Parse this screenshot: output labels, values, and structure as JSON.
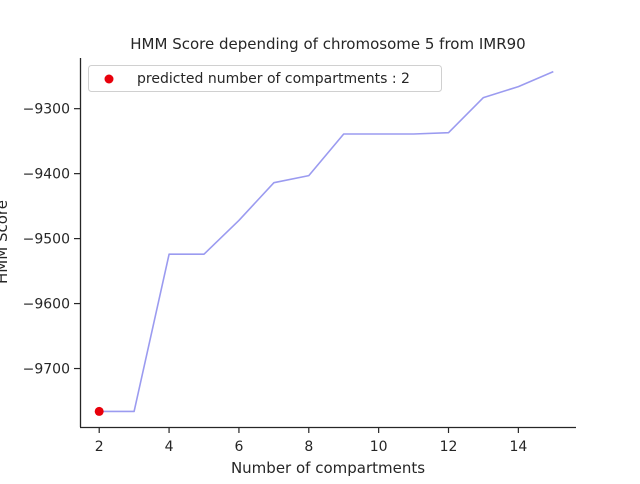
{
  "chart_data": {
    "type": "line",
    "title": "HMM Score depending of chromosome 5 from IMR90",
    "xlabel": "Number of compartments",
    "ylabel": "HMM Score",
    "x": [
      2,
      3,
      4,
      5,
      6,
      7,
      8,
      9,
      10,
      11,
      12,
      13,
      14,
      15
    ],
    "series": [
      {
        "values": [
          -9766,
          -9766,
          -9524,
          -9524,
          -9472,
          -9414,
          -9403,
          -9339,
          -9339,
          -9339,
          -9337,
          -9283,
          -9266,
          -9243
        ],
        "color": "#9b9bf0"
      }
    ],
    "marker": {
      "x": 2,
      "y": -9766,
      "color": "#e8000b",
      "label": "predicted number of compartments : 2"
    },
    "xticks": [
      2,
      4,
      6,
      8,
      10,
      12,
      14
    ],
    "yticks": [
      -9700,
      -9600,
      -9500,
      -9400,
      -9300
    ],
    "xlim": [
      1.45,
      15.65
    ],
    "ylim": [
      -9790,
      -9222
    ],
    "legend_position": "top-left",
    "grid": false
  }
}
